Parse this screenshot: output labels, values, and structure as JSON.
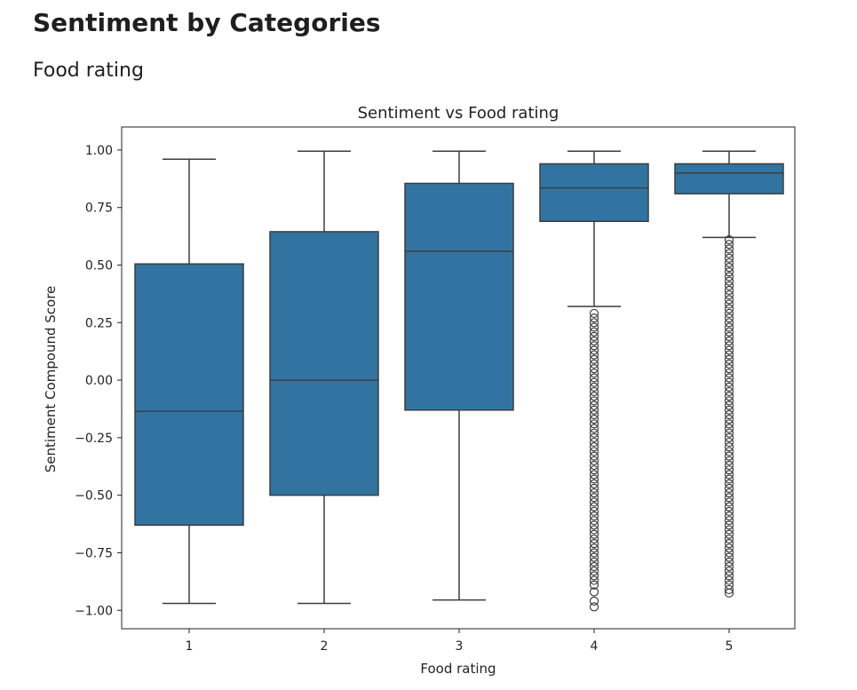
{
  "page": {
    "title": "Sentiment by Categories",
    "section_title": "Food rating"
  },
  "colors": {
    "box_fill": "#3274a1",
    "line": "#3d3d3d",
    "outlier_edge": "#3d3d3d"
  },
  "chart_data": {
    "type": "box",
    "title": "Sentiment vs Food rating",
    "xlabel": "Food rating",
    "ylabel": "Sentiment Compound Score",
    "categories": [
      "1",
      "2",
      "3",
      "4",
      "5"
    ],
    "ylim": [
      -1.08,
      1.1
    ],
    "yticks": [
      1.0,
      0.75,
      0.5,
      0.25,
      0.0,
      -0.25,
      -0.5,
      -0.75,
      -1.0
    ],
    "ytick_labels": [
      "1.00",
      "0.75",
      "0.50",
      "0.25",
      "0.00",
      "−0.25",
      "−0.50",
      "−0.75",
      "−1.00"
    ],
    "grid": false,
    "boxes": [
      {
        "category": "1",
        "whisker_low": -0.97,
        "q1": -0.63,
        "median": -0.135,
        "q3": 0.505,
        "whisker_high": 0.96,
        "outliers": []
      },
      {
        "category": "2",
        "whisker_low": -0.97,
        "q1": -0.5,
        "median": 0.0,
        "q3": 0.645,
        "whisker_high": 0.995,
        "outliers": []
      },
      {
        "category": "3",
        "whisker_low": -0.955,
        "q1": -0.13,
        "median": 0.56,
        "q3": 0.855,
        "whisker_high": 0.995,
        "outliers": []
      },
      {
        "category": "4",
        "whisker_low": 0.32,
        "q1": 0.69,
        "median": 0.835,
        "q3": 0.94,
        "whisker_high": 0.995,
        "outliers": [
          0.29,
          0.27,
          0.25,
          0.23,
          0.21,
          0.19,
          0.17,
          0.15,
          0.13,
          0.11,
          0.09,
          0.07,
          0.05,
          0.03,
          0.01,
          -0.01,
          -0.03,
          -0.05,
          -0.07,
          -0.09,
          -0.11,
          -0.13,
          -0.15,
          -0.17,
          -0.19,
          -0.21,
          -0.23,
          -0.25,
          -0.27,
          -0.29,
          -0.31,
          -0.33,
          -0.35,
          -0.37,
          -0.39,
          -0.41,
          -0.43,
          -0.45,
          -0.47,
          -0.49,
          -0.51,
          -0.53,
          -0.55,
          -0.57,
          -0.59,
          -0.61,
          -0.63,
          -0.65,
          -0.67,
          -0.69,
          -0.71,
          -0.73,
          -0.75,
          -0.77,
          -0.79,
          -0.81,
          -0.83,
          -0.85,
          -0.87,
          -0.89,
          -0.92,
          -0.96,
          -0.985
        ]
      },
      {
        "category": "5",
        "whisker_low": 0.62,
        "q1": 0.81,
        "median": 0.9,
        "q3": 0.94,
        "whisker_high": 0.995,
        "outliers": [
          0.61,
          0.59,
          0.57,
          0.55,
          0.53,
          0.51,
          0.49,
          0.47,
          0.45,
          0.43,
          0.41,
          0.39,
          0.37,
          0.35,
          0.33,
          0.31,
          0.29,
          0.27,
          0.25,
          0.23,
          0.21,
          0.19,
          0.17,
          0.15,
          0.13,
          0.11,
          0.09,
          0.07,
          0.05,
          0.03,
          0.01,
          -0.01,
          -0.03,
          -0.05,
          -0.07,
          -0.09,
          -0.11,
          -0.13,
          -0.15,
          -0.17,
          -0.19,
          -0.21,
          -0.23,
          -0.25,
          -0.27,
          -0.29,
          -0.31,
          -0.33,
          -0.35,
          -0.37,
          -0.39,
          -0.41,
          -0.43,
          -0.45,
          -0.47,
          -0.49,
          -0.51,
          -0.53,
          -0.55,
          -0.57,
          -0.59,
          -0.61,
          -0.63,
          -0.65,
          -0.67,
          -0.69,
          -0.71,
          -0.73,
          -0.75,
          -0.77,
          -0.79,
          -0.81,
          -0.83,
          -0.85,
          -0.87,
          -0.89,
          -0.91,
          -0.925
        ]
      }
    ]
  }
}
